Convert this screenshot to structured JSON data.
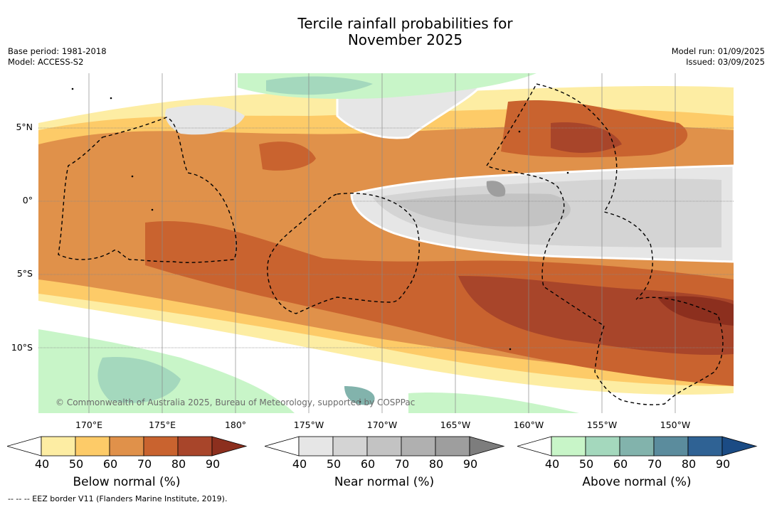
{
  "title_line1": "Tercile rainfall probabilities for",
  "title_line2": "November 2025",
  "meta_left": {
    "base_period": "Base period: 1981-2018",
    "model": "Model: ACCESS-S2"
  },
  "meta_right": {
    "model_run": "Model run: 01/09/2025",
    "issued": "Issued: 03/09/2025"
  },
  "map": {
    "lat_labels": [
      "5°N",
      "0°",
      "5°S",
      "10°S"
    ],
    "lon_labels": [
      "170°E",
      "175°E",
      "180°",
      "175°W",
      "170°W",
      "165°W",
      "160°W",
      "155°W",
      "150°W"
    ],
    "copyright": "© Commonwealth of Australia 2025, Bureau of Meteorology, supported by COSPPac",
    "background_color": "#ffffff",
    "eez_border_style": "dashed black"
  },
  "colorbars": [
    {
      "label": "Below normal (%)",
      "ticks": [
        "40",
        "50",
        "60",
        "70",
        "80",
        "90"
      ],
      "colors": [
        "#ffffff",
        "#fdeda3",
        "#fdcb68",
        "#e0914a",
        "#c9632f",
        "#a8452a",
        "#8c2f1e"
      ]
    },
    {
      "label": "Near normal (%)",
      "ticks": [
        "40",
        "50",
        "60",
        "70",
        "80",
        "90"
      ],
      "colors": [
        "#ffffff",
        "#e6e6e6",
        "#d4d4d4",
        "#c3c3c3",
        "#b0b0b0",
        "#9e9e9e",
        "#7d7d7d"
      ]
    },
    {
      "label": "Above normal (%)",
      "ticks": [
        "40",
        "50",
        "60",
        "70",
        "80",
        "90"
      ],
      "colors": [
        "#ffffff",
        "#c8f5c8",
        "#a4d8bd",
        "#82b3ac",
        "#5b8c9d",
        "#2f6294",
        "#1b4b84"
      ]
    }
  ],
  "footnote": "--  --  -- EEZ border V11 (Flanders Marine Institute, 2019)."
}
